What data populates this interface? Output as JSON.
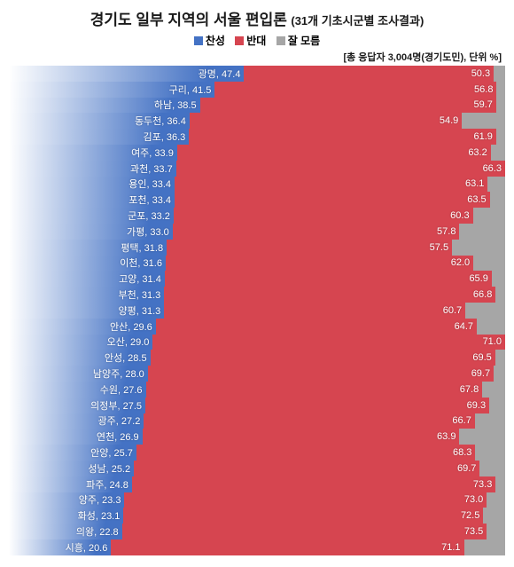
{
  "title_main": "경기도 일부 지역의 서울 편입론",
  "title_sub": "(31개 기초시군별 조사결과)",
  "legend": {
    "agree": "찬성",
    "disagree": "반대",
    "dontknow": "잘 모름"
  },
  "note": "[총 응답자 3,004명(경기도민), 단위 %]",
  "colors": {
    "agree": "#4472c4",
    "disagree": "#d64550",
    "dontknow": "#a6a6a6",
    "text_on_bar": "#ffffff"
  },
  "chart": {
    "type": "stacked-horizontal-bar",
    "rows": [
      {
        "name": "광명",
        "agree": 47.4,
        "disagree": 50.3
      },
      {
        "name": "구리",
        "agree": 41.5,
        "disagree": 56.8
      },
      {
        "name": "하남",
        "agree": 38.5,
        "disagree": 59.7
      },
      {
        "name": "동두천",
        "agree": 36.4,
        "disagree": 54.9
      },
      {
        "name": "김포",
        "agree": 36.3,
        "disagree": 61.9
      },
      {
        "name": "여주",
        "agree": 33.9,
        "disagree": 63.2
      },
      {
        "name": "과천",
        "agree": 33.7,
        "disagree": 66.3
      },
      {
        "name": "용인",
        "agree": 33.4,
        "disagree": 63.1
      },
      {
        "name": "포천",
        "agree": 33.4,
        "disagree": 63.5
      },
      {
        "name": "군포",
        "agree": 33.2,
        "disagree": 60.3
      },
      {
        "name": "가평",
        "agree": 33.0,
        "disagree": 57.8
      },
      {
        "name": "평택",
        "agree": 31.8,
        "disagree": 57.5
      },
      {
        "name": "이천",
        "agree": 31.6,
        "disagree": 62.0
      },
      {
        "name": "고양",
        "agree": 31.4,
        "disagree": 65.9
      },
      {
        "name": "부천",
        "agree": 31.3,
        "disagree": 66.8
      },
      {
        "name": "양평",
        "agree": 31.3,
        "disagree": 60.7
      },
      {
        "name": "안산",
        "agree": 29.6,
        "disagree": 64.7
      },
      {
        "name": "오산",
        "agree": 29.0,
        "disagree": 71.0
      },
      {
        "name": "안성",
        "agree": 28.5,
        "disagree": 69.5
      },
      {
        "name": "남양주",
        "agree": 28.0,
        "disagree": 69.7
      },
      {
        "name": "수원",
        "agree": 27.6,
        "disagree": 67.8
      },
      {
        "name": "의정부",
        "agree": 27.5,
        "disagree": 69.3
      },
      {
        "name": "광주",
        "agree": 27.2,
        "disagree": 66.7
      },
      {
        "name": "연천",
        "agree": 26.9,
        "disagree": 63.9
      },
      {
        "name": "안양",
        "agree": 25.7,
        "disagree": 68.3
      },
      {
        "name": "성남",
        "agree": 25.2,
        "disagree": 69.7
      },
      {
        "name": "파주",
        "agree": 24.8,
        "disagree": 73.3
      },
      {
        "name": "양주",
        "agree": 23.3,
        "disagree": 73.0
      },
      {
        "name": "화성",
        "agree": 23.1,
        "disagree": 72.5
      },
      {
        "name": "의왕",
        "agree": 22.8,
        "disagree": 73.5
      },
      {
        "name": "시흥",
        "agree": 20.6,
        "disagree": 71.1
      }
    ]
  }
}
